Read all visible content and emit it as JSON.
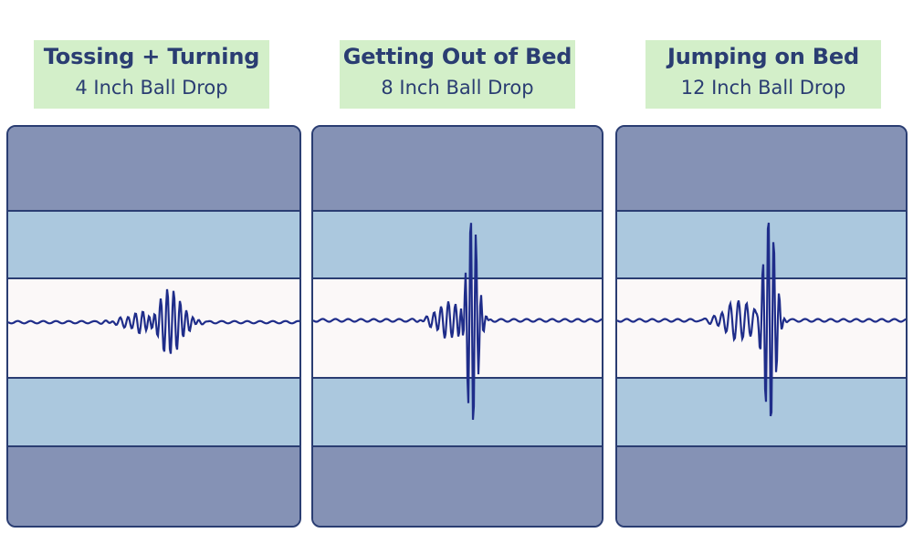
{
  "panels": [
    {
      "title": "Tossing + Turning",
      "subtitle": "4 Inch Ball Drop"
    },
    {
      "title": "Getting Out of Bed",
      "subtitle": "8 Inch Ball Drop"
    },
    {
      "title": "Jumping on Bed",
      "subtitle": "12 Inch Ball Drop"
    }
  ],
  "colors": {
    "label_bg": "#d3efc9",
    "text": "#2a3d72",
    "outer_band": "#8592b5",
    "middle_band": "#abc8de",
    "center_band": "#fbf8f8",
    "waveform": "#1f2d8a"
  }
}
